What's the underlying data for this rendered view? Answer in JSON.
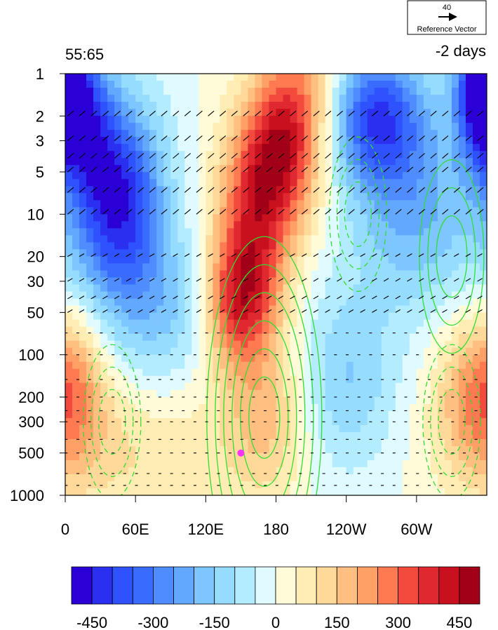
{
  "chart_data": {
    "type": "heatmap",
    "panel_left_label": "55:65",
    "panel_right_label": "-2 days",
    "reference_vector": {
      "magnitude_label": "40",
      "caption": "Reference Vector"
    },
    "x_axis": {
      "range": [
        0,
        360
      ],
      "ticks": [
        {
          "lon": 0,
          "label": "0"
        },
        {
          "lon": 60,
          "label": "60E"
        },
        {
          "lon": 120,
          "label": "120E"
        },
        {
          "lon": 180,
          "label": "180"
        },
        {
          "lon": 240,
          "label": "120W"
        },
        {
          "lon": 300,
          "label": "60W"
        }
      ]
    },
    "y_axis": {
      "scale": "log",
      "reversed": true,
      "range": [
        1,
        1000
      ],
      "ticks": [
        {
          "p": 1,
          "label": "1"
        },
        {
          "p": 2,
          "label": "2"
        },
        {
          "p": 3,
          "label": "3"
        },
        {
          "p": 5,
          "label": "5"
        },
        {
          "p": 10,
          "label": "10"
        },
        {
          "p": 20,
          "label": "20"
        },
        {
          "p": 30,
          "label": "30"
        },
        {
          "p": 50,
          "label": "50"
        },
        {
          "p": 100,
          "label": "100"
        },
        {
          "p": 200,
          "label": "200"
        },
        {
          "p": 300,
          "label": "300"
        },
        {
          "p": 500,
          "label": "500"
        },
        {
          "p": 1000,
          "label": "1000"
        }
      ]
    },
    "colorbar": {
      "colors": [
        "#2a00d6",
        "#2a2ff0",
        "#2f52ff",
        "#3a6bff",
        "#4f8cff",
        "#63a8ff",
        "#7dc6ff",
        "#96dcff",
        "#b3ecff",
        "#e0fbff",
        "#fffbd9",
        "#ffedb4",
        "#ffd99a",
        "#ffbf80",
        "#ffa066",
        "#ff7a50",
        "#f24a3c",
        "#e02830",
        "#c8101f",
        "#a10018"
      ],
      "levels": [
        -450,
        -400,
        -350,
        -300,
        -250,
        -200,
        -150,
        -100,
        -50,
        0,
        50,
        100,
        150,
        200,
        250,
        300,
        350,
        400,
        450
      ],
      "tick_labels": [
        {
          "level": -450,
          "label": "-450"
        },
        {
          "level": -300,
          "label": "-300"
        },
        {
          "level": -150,
          "label": "-150"
        },
        {
          "level": 0,
          "label": "0"
        },
        {
          "level": 150,
          "label": "150"
        },
        {
          "level": 300,
          "label": "300"
        },
        {
          "level": 450,
          "label": "450"
        }
      ]
    },
    "shading_features": [
      {
        "lon": 180,
        "p": 4,
        "value": 500,
        "sigma_lon": 28,
        "sigma_logp": 0.55,
        "tilt": -25
      },
      {
        "lon": 150,
        "p": 40,
        "value": 380,
        "sigma_lon": 22,
        "sigma_logp": 0.35,
        "tilt": -10
      },
      {
        "lon": 45,
        "p": 8,
        "value": -450,
        "sigma_lon": 28,
        "sigma_logp": 0.5,
        "tilt": 0
      },
      {
        "lon": 10,
        "p": 2,
        "value": -350,
        "sigma_lon": 20,
        "sigma_logp": 0.35,
        "tilt": 0
      },
      {
        "lon": 265,
        "p": 2,
        "value": -380,
        "sigma_lon": 30,
        "sigma_logp": 0.35,
        "tilt": 0
      },
      {
        "lon": 355,
        "p": 1.2,
        "value": -400,
        "sigma_lon": 15,
        "sigma_logp": 0.3,
        "tilt": 0
      },
      {
        "lon": 300,
        "p": 10,
        "value": -200,
        "sigma_lon": 40,
        "sigma_logp": 0.5,
        "tilt": 0
      },
      {
        "lon": 240,
        "p": 150,
        "value": -150,
        "sigma_lon": 30,
        "sigma_logp": 0.45,
        "tilt": 0
      },
      {
        "lon": 170,
        "p": 250,
        "value": 170,
        "sigma_lon": 25,
        "sigma_logp": 0.45,
        "tilt": 0
      },
      {
        "lon": 350,
        "p": 200,
        "value": 200,
        "sigma_lon": 25,
        "sigma_logp": 0.4,
        "tilt": 0
      },
      {
        "lon": 10,
        "p": 150,
        "value": 120,
        "sigma_lon": 20,
        "sigma_logp": 0.4,
        "tilt": 0
      },
      {
        "lon": 60,
        "p": 500,
        "value": 100,
        "sigma_lon": 60,
        "sigma_logp": 0.4,
        "tilt": 0
      },
      {
        "lon": 90,
        "p": 50,
        "value": -150,
        "sigma_lon": 40,
        "sigma_logp": 0.4,
        "tilt": 0
      }
    ],
    "contour_lines": {
      "color": "#33dd33",
      "positive_centers": [
        {
          "lon": 170,
          "p": 280,
          "levels": 6
        },
        {
          "lon": 330,
          "p": 20,
          "levels": 3
        }
      ],
      "negative_centers": [
        {
          "lon": 40,
          "p": 300,
          "levels": 3
        },
        {
          "lon": 330,
          "p": 300,
          "levels": 3
        },
        {
          "lon": 250,
          "p": 10,
          "levels": 3
        }
      ]
    },
    "marker": {
      "lon": 150,
      "p": 500,
      "color": "#ff33ff"
    }
  }
}
